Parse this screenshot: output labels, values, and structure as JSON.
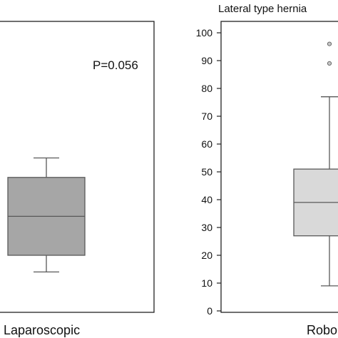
{
  "chart_data": [
    {
      "type": "box",
      "title": "",
      "xlabel": "",
      "ylabel": "",
      "annotation": "P=0.056",
      "categories": [
        "Laparoscopic"
      ],
      "ylim": [
        0,
        100
      ],
      "boxes": [
        {
          "name": "Laparoscopic",
          "whisker_low": 14,
          "q1": 20,
          "median": 34,
          "q3": 48,
          "whisker_high": 55,
          "outliers": []
        }
      ],
      "colors": {
        "box": "#a6a6a6",
        "line": "#595959"
      }
    },
    {
      "type": "box",
      "title": "Lateral type hernia",
      "xlabel": "",
      "ylabel": "",
      "categories": [
        "Robo"
      ],
      "ylim": [
        0,
        100
      ],
      "yticks": [
        "0",
        "10",
        "20",
        "30",
        "40",
        "50",
        "60",
        "70",
        "80",
        "90",
        "100"
      ],
      "boxes": [
        {
          "name": "Robo",
          "whisker_low": 9,
          "q1": 27,
          "median": 39,
          "q3": 51,
          "whisker_high": 77,
          "outliers": [
            89,
            96
          ]
        }
      ],
      "colors": {
        "box": "#d9d9d9",
        "line": "#595959"
      }
    }
  ]
}
